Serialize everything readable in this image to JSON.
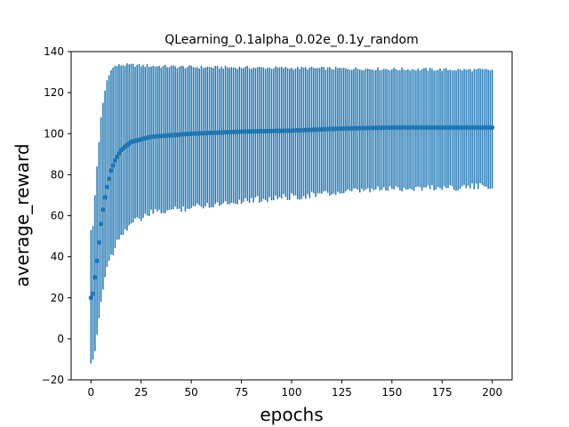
{
  "chart_data": {
    "type": "errorbar",
    "title": "QLearning_0.1alpha_0.02e_0.1y_random",
    "xlabel": "epochs",
    "ylabel": "average_reward",
    "xlim": [
      -9.9,
      209.9
    ],
    "ylim": [
      -20,
      140
    ],
    "xticks": [
      "0",
      "25",
      "50",
      "75",
      "100",
      "125",
      "150",
      "175",
      "200"
    ],
    "yticks": [
      "−20",
      "0",
      "20",
      "40",
      "60",
      "80",
      "100",
      "120",
      "140"
    ],
    "grid": false,
    "legend": "none",
    "series_color": "#1f77b4",
    "error_bar_spec": {
      "epochs": [
        0,
        200
      ],
      "mean_anchors": [
        [
          0,
          20
        ],
        [
          1,
          22
        ],
        [
          2,
          30
        ],
        [
          3,
          38
        ],
        [
          4,
          47
        ],
        [
          5,
          56
        ],
        [
          6,
          63
        ],
        [
          7,
          69
        ],
        [
          8,
          74
        ],
        [
          10,
          82
        ],
        [
          12,
          87
        ],
        [
          15,
          92
        ],
        [
          20,
          96
        ],
        [
          30,
          98.5
        ],
        [
          50,
          100
        ],
        [
          75,
          101
        ],
        [
          100,
          101.5
        ],
        [
          125,
          102.5
        ],
        [
          150,
          103
        ],
        [
          175,
          103
        ],
        [
          200,
          103
        ]
      ],
      "upper_anchors": [
        [
          0,
          53
        ],
        [
          1,
          55
        ],
        [
          2,
          70
        ],
        [
          3,
          84
        ],
        [
          4,
          96
        ],
        [
          5,
          108
        ],
        [
          6,
          115
        ],
        [
          7,
          121
        ],
        [
          8,
          126
        ],
        [
          10,
          131
        ],
        [
          12,
          133
        ],
        [
          15,
          133.5
        ],
        [
          20,
          133.5
        ],
        [
          30,
          133
        ],
        [
          50,
          132.5
        ],
        [
          100,
          132
        ],
        [
          150,
          131.5
        ],
        [
          200,
          131
        ]
      ],
      "lower_anchors": [
        [
          0,
          -12
        ],
        [
          1,
          -10
        ],
        [
          2,
          -6
        ],
        [
          3,
          2
        ],
        [
          4,
          10
        ],
        [
          5,
          18
        ],
        [
          6,
          24
        ],
        [
          7,
          30
        ],
        [
          8,
          35
        ],
        [
          10,
          41
        ],
        [
          12,
          47
        ],
        [
          15,
          53
        ],
        [
          20,
          58
        ],
        [
          30,
          63
        ],
        [
          50,
          66
        ],
        [
          75,
          69
        ],
        [
          100,
          71
        ],
        [
          125,
          73
        ],
        [
          150,
          75
        ],
        [
          175,
          75.5
        ],
        [
          200,
          76
        ]
      ]
    }
  }
}
